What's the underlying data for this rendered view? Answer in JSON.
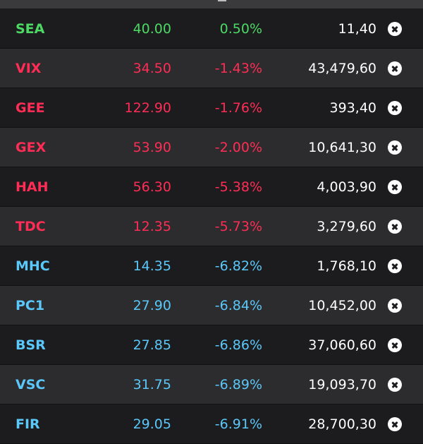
{
  "colors": {
    "up": "#4cd964",
    "down": "#ff2d55",
    "floor": "#5ac8fa",
    "volume": "#ffffff"
  },
  "watchlist": {
    "rows": [
      {
        "symbol": "SEA",
        "price": "40.00",
        "change": "0.50%",
        "volume": "11,40",
        "trend": "up",
        "remove_icon": "close-circle-icon"
      },
      {
        "symbol": "VIX",
        "price": "34.50",
        "change": "-1.43%",
        "volume": "43,479,60",
        "trend": "down",
        "remove_icon": "close-circle-icon"
      },
      {
        "symbol": "GEE",
        "price": "122.90",
        "change": "-1.76%",
        "volume": "393,40",
        "trend": "down",
        "remove_icon": "close-circle-icon"
      },
      {
        "symbol": "GEX",
        "price": "53.90",
        "change": "-2.00%",
        "volume": "10,641,30",
        "trend": "down",
        "remove_icon": "close-circle-icon"
      },
      {
        "symbol": "HAH",
        "price": "56.30",
        "change": "-5.38%",
        "volume": "4,003,90",
        "trend": "down",
        "remove_icon": "close-circle-icon"
      },
      {
        "symbol": "TDC",
        "price": "12.35",
        "change": "-5.73%",
        "volume": "3,279,60",
        "trend": "down",
        "remove_icon": "close-circle-icon"
      },
      {
        "symbol": "MHC",
        "price": "14.35",
        "change": "-6.82%",
        "volume": "1,768,10",
        "trend": "floor",
        "remove_icon": "close-circle-icon"
      },
      {
        "symbol": "PC1",
        "price": "27.90",
        "change": "-6.84%",
        "volume": "10,452,00",
        "trend": "floor",
        "remove_icon": "close-circle-icon"
      },
      {
        "symbol": "BSR",
        "price": "27.85",
        "change": "-6.86%",
        "volume": "37,060,60",
        "trend": "floor",
        "remove_icon": "close-circle-icon"
      },
      {
        "symbol": "VSC",
        "price": "31.75",
        "change": "-6.89%",
        "volume": "19,093,70",
        "trend": "floor",
        "remove_icon": "close-circle-icon"
      },
      {
        "symbol": "FIR",
        "price": "29.05",
        "change": "-6.91%",
        "volume": "28,700,30",
        "trend": "floor",
        "remove_icon": "close-circle-icon"
      }
    ]
  }
}
